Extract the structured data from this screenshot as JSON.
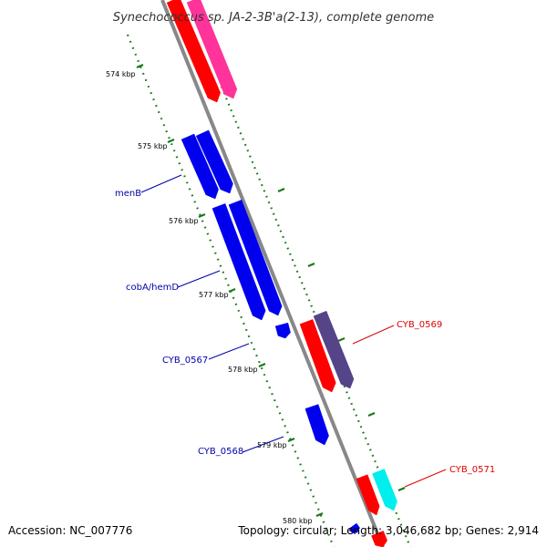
{
  "title": "Synechococcus sp. JA-2-3B'a(2-13), complete genome",
  "footer": {
    "accession": "Accession: NC_007776",
    "summary": "Topology: circular; Length: 3,046,682 bp; Genes: 2,914"
  },
  "ruler_labels": [
    "574 kbp",
    "575 kbp",
    "576 kbp",
    "577 kbp",
    "578 kbp",
    "579 kbp",
    "580 kbp"
  ],
  "gene_labels": {
    "menB": "menB",
    "cobA_hemD": "cobA/hemD",
    "CYB_0567": "CYB_0567",
    "CYB_0568": "CYB_0568",
    "CYB_0569": "CYB_0569",
    "CYB_0571": "CYB_0571"
  },
  "colors": {
    "backbone": "#888888",
    "tick": "#1a7a1a",
    "blue_gene": "#0000ee",
    "red_gene": "#ff0000",
    "pink_gene": "#ff3399",
    "purple_gene": "#554488",
    "cyan_gene": "#00eeee",
    "blue_label": "#0000aa",
    "red_label": "#dd0000"
  }
}
